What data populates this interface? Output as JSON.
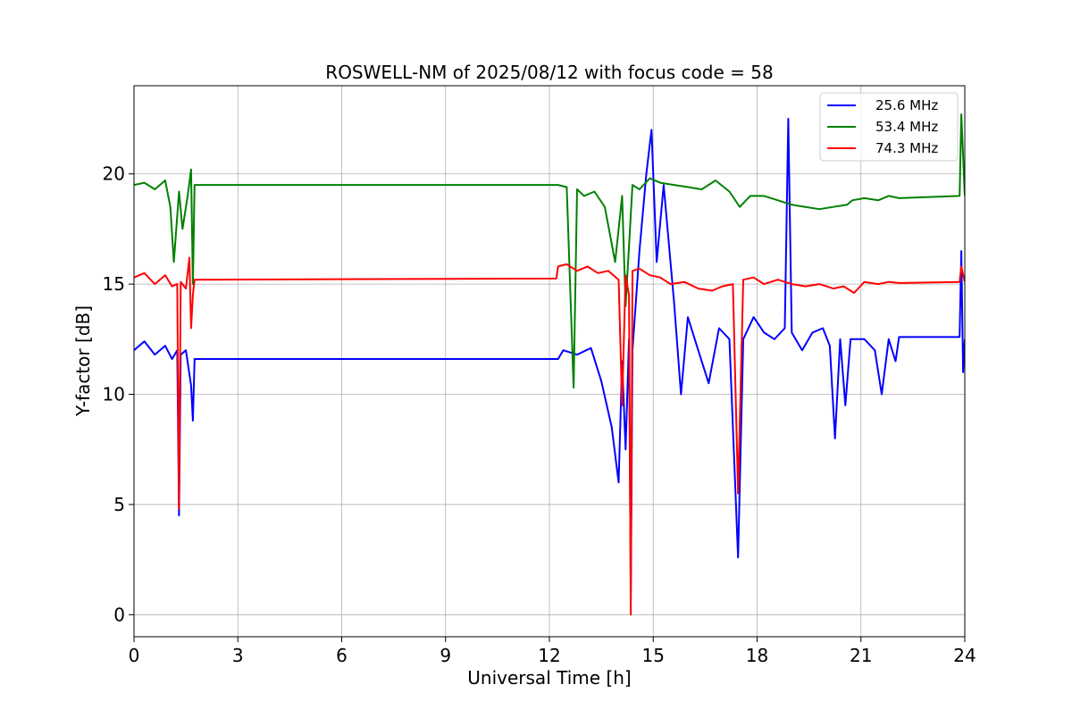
{
  "chart_data": {
    "type": "line",
    "title": "ROSWELL-NM of 2025/08/12 with focus code = 58",
    "xlabel": "Universal Time [h]",
    "ylabel": "Y-factor [dB]",
    "xlim": [
      0,
      24
    ],
    "ylim": [
      -1,
      24
    ],
    "x_ticks": [
      0,
      3,
      6,
      9,
      12,
      15,
      18,
      21,
      24
    ],
    "y_ticks": [
      0,
      5,
      10,
      15,
      20
    ],
    "grid": true,
    "legend_position": "top-right",
    "series": [
      {
        "name": "25.6 MHz",
        "color": "#0000ff",
        "x": [
          0.0,
          0.3,
          0.6,
          0.9,
          1.1,
          1.25,
          1.3,
          1.35,
          1.5,
          1.65,
          1.7,
          1.75,
          12.25,
          12.4,
          12.8,
          13.2,
          13.5,
          13.8,
          14.0,
          14.1,
          14.2,
          14.3,
          14.35,
          14.4,
          14.6,
          14.8,
          14.95,
          15.1,
          15.3,
          15.6,
          15.8,
          16.0,
          16.3,
          16.6,
          16.9,
          17.2,
          17.45,
          17.6,
          17.9,
          18.2,
          18.5,
          18.8,
          18.9,
          19.0,
          19.3,
          19.6,
          19.9,
          20.1,
          20.25,
          20.4,
          20.55,
          20.7,
          21.1,
          21.4,
          21.6,
          21.8,
          22.0,
          22.1,
          23.85,
          23.9,
          23.95,
          24.0
        ],
        "y": [
          12.0,
          12.4,
          11.8,
          12.2,
          11.6,
          12.0,
          4.5,
          11.8,
          12.0,
          10.4,
          8.8,
          11.6,
          11.6,
          12.0,
          11.8,
          12.1,
          10.6,
          8.5,
          6.0,
          11.5,
          7.5,
          12.5,
          1.0,
          12.0,
          16.5,
          20.0,
          22.0,
          16.0,
          19.5,
          14.2,
          10.0,
          13.5,
          12.0,
          10.5,
          13.0,
          12.5,
          2.6,
          12.5,
          13.5,
          12.8,
          12.5,
          13.0,
          22.5,
          12.8,
          12.0,
          12.8,
          13.0,
          12.2,
          8.0,
          12.5,
          9.5,
          12.5,
          12.5,
          12.0,
          10.0,
          12.5,
          11.5,
          12.6,
          12.6,
          16.5,
          11.0,
          12.5
        ]
      },
      {
        "name": "53.4 MHz",
        "color": "#008000",
        "x": [
          0.0,
          0.3,
          0.6,
          0.9,
          1.05,
          1.15,
          1.3,
          1.4,
          1.55,
          1.65,
          1.7,
          1.75,
          12.25,
          12.5,
          12.7,
          12.8,
          13.0,
          13.3,
          13.6,
          13.9,
          14.1,
          14.2,
          14.4,
          14.6,
          14.9,
          15.2,
          15.6,
          16.0,
          16.4,
          16.8,
          17.2,
          17.5,
          17.8,
          18.2,
          18.6,
          19.0,
          19.4,
          19.8,
          20.2,
          20.6,
          20.75,
          21.1,
          21.5,
          21.8,
          22.1,
          23.85,
          23.9,
          24.0
        ],
        "y": [
          19.5,
          19.6,
          19.3,
          19.7,
          18.5,
          16.0,
          19.2,
          17.5,
          19.0,
          20.2,
          15.0,
          19.5,
          19.5,
          19.4,
          10.3,
          19.3,
          19.0,
          19.2,
          18.5,
          16.0,
          19.0,
          14.0,
          19.5,
          19.3,
          19.8,
          19.6,
          19.5,
          19.4,
          19.3,
          19.7,
          19.2,
          18.5,
          19.0,
          19.0,
          18.8,
          18.6,
          18.5,
          18.4,
          18.5,
          18.6,
          18.8,
          18.9,
          18.8,
          19.0,
          18.9,
          19.0,
          22.7,
          19.0
        ]
      },
      {
        "name": "74.3 MHz",
        "color": "#ff0000",
        "x": [
          0.0,
          0.3,
          0.6,
          0.9,
          1.1,
          1.25,
          1.3,
          1.35,
          1.5,
          1.6,
          1.65,
          1.7,
          1.75,
          12.2,
          12.25,
          12.5,
          12.8,
          13.1,
          13.4,
          13.7,
          14.0,
          14.1,
          14.2,
          14.3,
          14.35,
          14.4,
          14.6,
          14.9,
          15.2,
          15.5,
          15.9,
          16.3,
          16.7,
          17.0,
          17.3,
          17.45,
          17.6,
          17.9,
          18.2,
          18.6,
          19.0,
          19.4,
          19.8,
          20.2,
          20.5,
          20.8,
          21.1,
          21.5,
          21.8,
          22.1,
          23.85,
          23.9,
          24.0
        ],
        "y": [
          15.3,
          15.5,
          15.0,
          15.4,
          14.9,
          15.0,
          4.8,
          15.1,
          14.8,
          16.2,
          13.0,
          14.5,
          15.2,
          15.25,
          15.8,
          15.9,
          15.6,
          15.8,
          15.5,
          15.6,
          15.2,
          9.5,
          15.4,
          14.5,
          0.0,
          15.6,
          15.7,
          15.4,
          15.3,
          15.0,
          15.1,
          14.8,
          14.7,
          14.9,
          15.0,
          5.5,
          15.2,
          15.3,
          15.0,
          15.2,
          15.0,
          14.9,
          15.0,
          14.8,
          14.9,
          14.6,
          15.1,
          15.0,
          15.1,
          15.05,
          15.1,
          15.8,
          15.1
        ]
      }
    ]
  }
}
